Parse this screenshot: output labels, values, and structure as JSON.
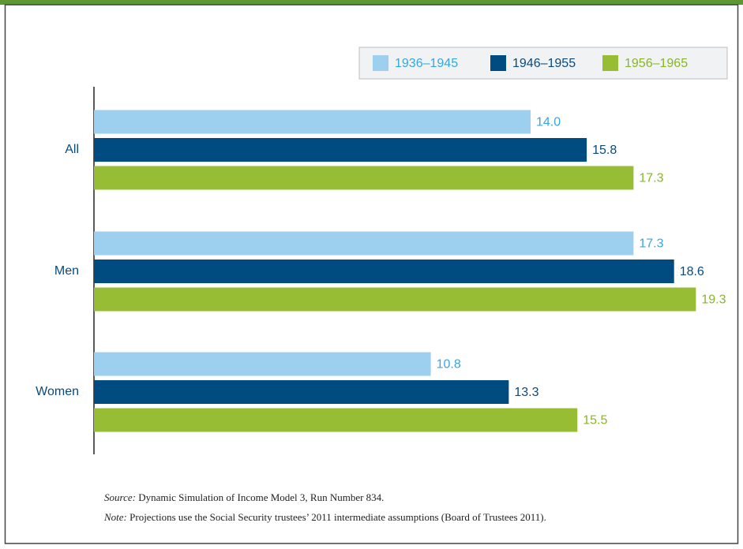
{
  "chart_data": {
    "type": "hbar",
    "categories": [
      "All",
      "Men",
      "Women"
    ],
    "series": [
      {
        "name": "1936–1945",
        "color": "#9dcfee",
        "label_color": "#3aa6dd",
        "values": [
          14.0,
          17.3,
          10.8
        ],
        "value_labels": [
          "14.0",
          "17.3",
          "10.8"
        ]
      },
      {
        "name": "1946–1955",
        "color": "#004b80",
        "label_color": "#0b4a7a",
        "values": [
          15.8,
          18.6,
          13.3
        ],
        "value_labels": [
          "15.8",
          "18.6",
          "13.3"
        ]
      },
      {
        "name": "1956–1965",
        "color": "#97bd35",
        "label_color": "#8ab52a",
        "values": [
          17.3,
          19.3,
          15.5
        ],
        "value_labels": [
          "17.3",
          "19.3",
          "15.5"
        ]
      }
    ],
    "source": {
      "label": "Source:",
      "text": "Dynamic Simulation of Income Model 3, Run Number 834."
    },
    "note": {
      "label": "Note:",
      "text": "Projections use the Social Security trustees’ 2011 intermediate assumptions (Board of Trustees 2011)."
    }
  }
}
